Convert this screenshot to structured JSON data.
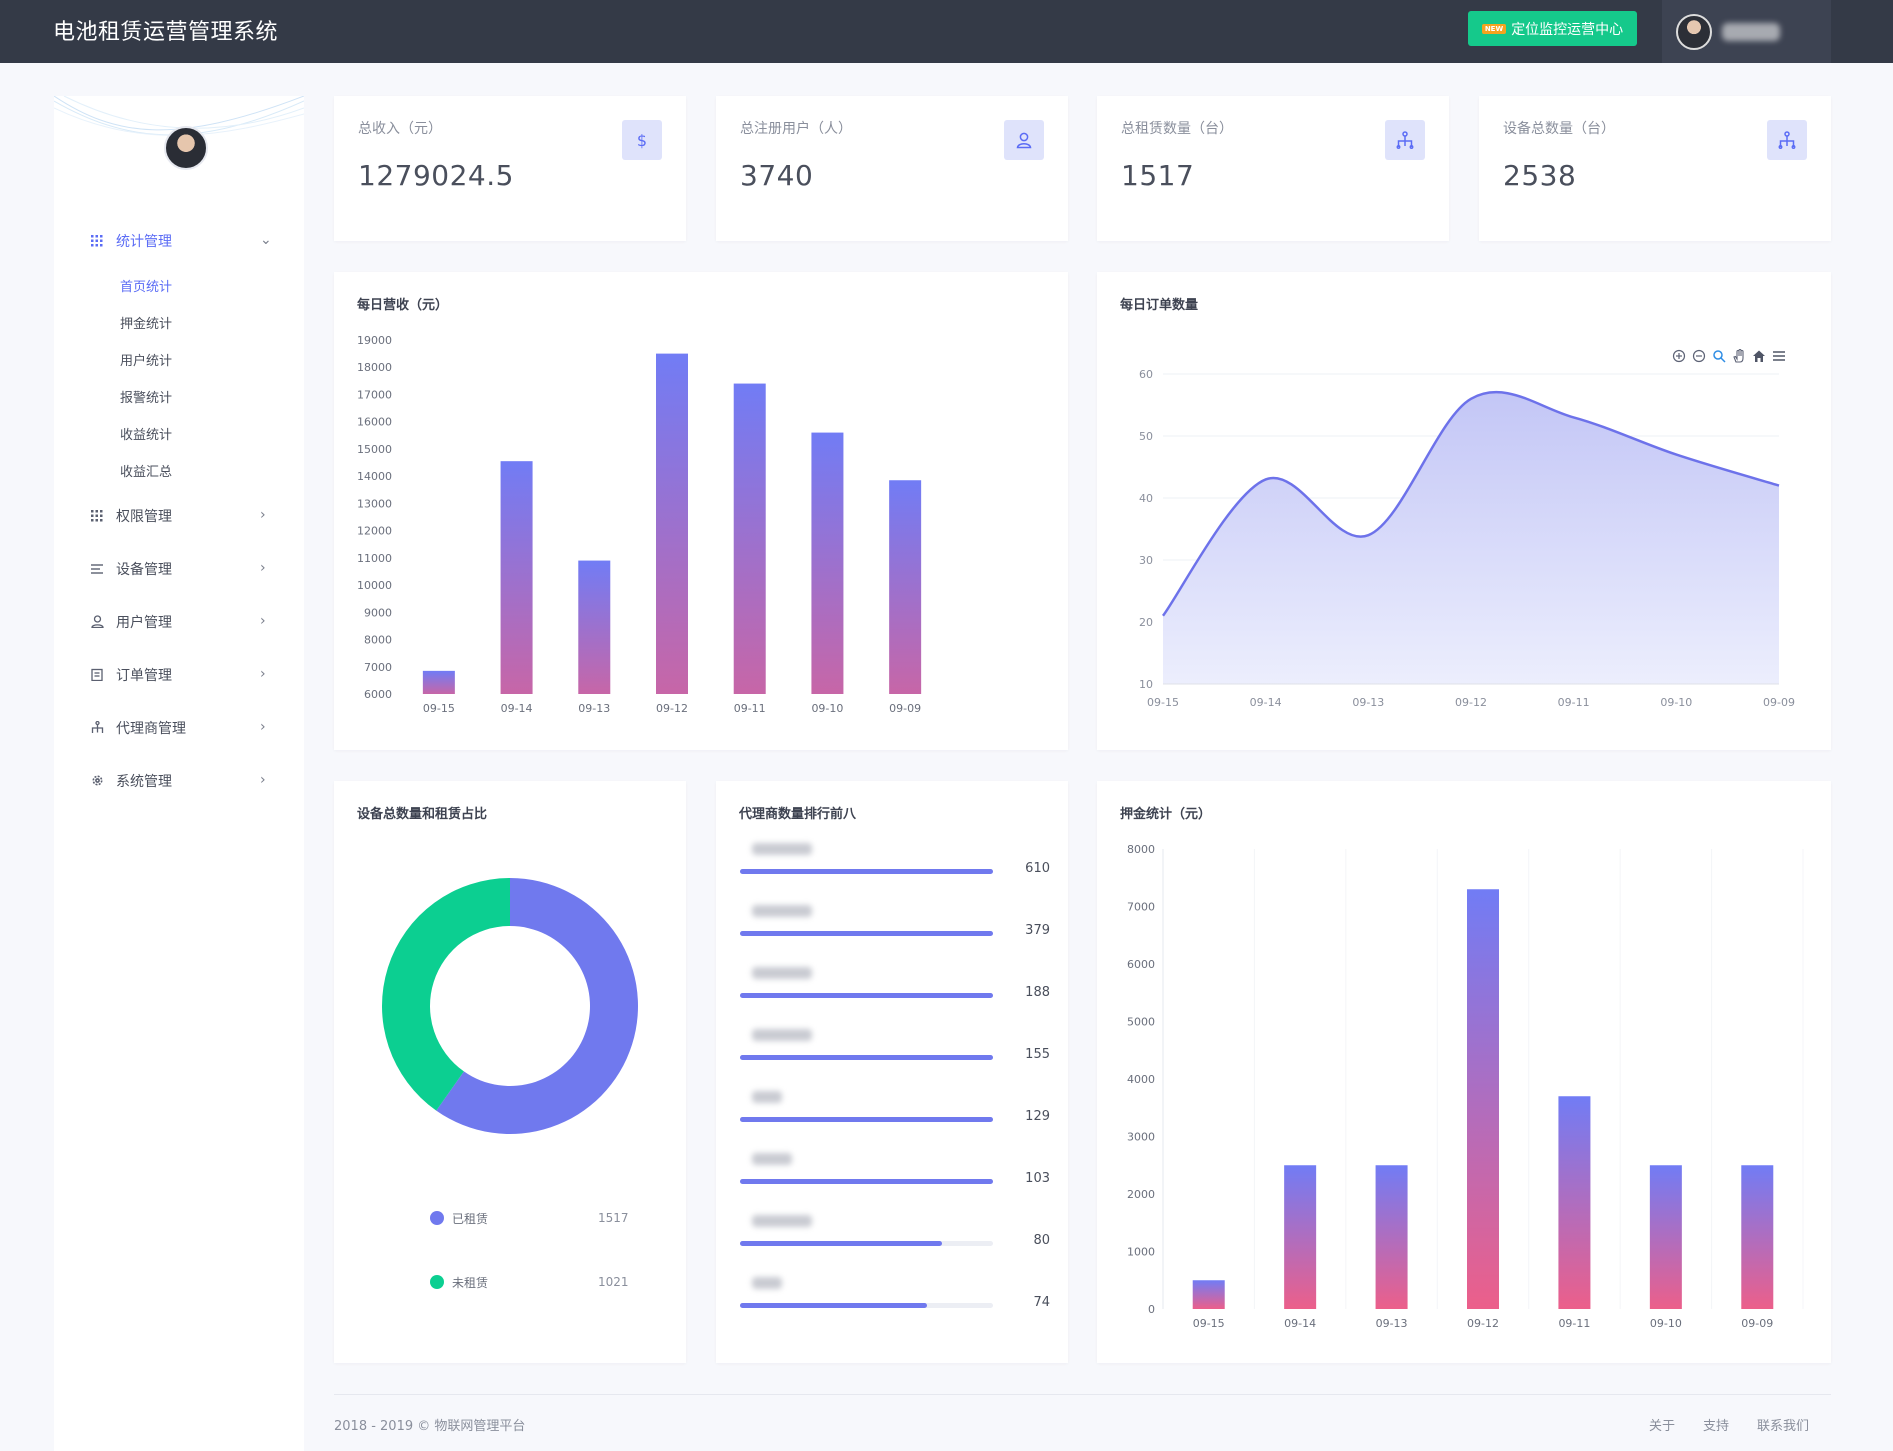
{
  "header": {
    "app_title": "电池租赁运营管理系统",
    "monitor_badge": "NEW",
    "monitor_label": "定位监控运营中心"
  },
  "sidebar": {
    "menu": [
      {
        "label": "统计管理",
        "icon": "grid-icon",
        "expanded": true,
        "children": [
          "首页统计",
          "押金统计",
          "用户统计",
          "报警统计",
          "收益统计",
          "收益汇总"
        ]
      },
      {
        "label": "权限管理",
        "icon": "grid-icon"
      },
      {
        "label": "设备管理",
        "icon": "list-icon"
      },
      {
        "label": "用户管理",
        "icon": "user-icon"
      },
      {
        "label": "订单管理",
        "icon": "clipboard-icon"
      },
      {
        "label": "代理商管理",
        "icon": "sitemap-icon"
      },
      {
        "label": "系统管理",
        "icon": "gear-icon"
      }
    ]
  },
  "stats": [
    {
      "label": "总收入（元）",
      "value": "1279024.5",
      "icon": "dollar-icon"
    },
    {
      "label": "总注册用户（人）",
      "value": "3740",
      "icon": "user-icon"
    },
    {
      "label": "总租赁数量（台）",
      "value": "1517",
      "icon": "sitemap-icon"
    },
    {
      "label": "设备总数量（台）",
      "value": "2538",
      "icon": "sitemap-icon"
    }
  ],
  "panels": {
    "revenue_title": "每日营收（元）",
    "orders_title": "每日订单数量",
    "ratio_title": "设备总数量和租赁占比",
    "agents_title": "代理商数量排行前八",
    "deposit_title": "押金统计（元）"
  },
  "ratio_legend": [
    {
      "label": "已租赁",
      "value": "1517",
      "color": "#7079ee"
    },
    {
      "label": "未租赁",
      "value": "1021",
      "color": "#0ccf91"
    }
  ],
  "agents": [
    {
      "value": "610",
      "fraction": 1.0
    },
    {
      "value": "379",
      "fraction": 1.0
    },
    {
      "value": "188",
      "fraction": 1.0
    },
    {
      "value": "155",
      "fraction": 1.0
    },
    {
      "value": "129",
      "fraction": 1.0
    },
    {
      "value": "103",
      "fraction": 1.0
    },
    {
      "value": "80",
      "fraction": 0.8
    },
    {
      "value": "74",
      "fraction": 0.74
    }
  ],
  "chart_data": [
    {
      "type": "bar",
      "categories": [
        "09-15",
        "09-14",
        "09-13",
        "09-12",
        "09-11",
        "09-10",
        "09-09"
      ],
      "values": [
        6850,
        14550,
        10900,
        18500,
        17400,
        15600,
        13850
      ],
      "ylim": [
        6000,
        19000
      ],
      "yticks": [
        19000,
        18000,
        17000,
        16000,
        15000,
        14000,
        13000,
        12000,
        11000,
        10000,
        9000,
        8000,
        7000,
        6000
      ],
      "colors": {
        "top": "#717cf5",
        "bottom": "#c766a7"
      }
    },
    {
      "type": "area",
      "categories": [
        "09-15",
        "09-14",
        "09-13",
        "09-12",
        "09-11",
        "09-10",
        "09-09"
      ],
      "values": [
        21,
        43,
        34,
        56,
        53,
        47,
        42
      ],
      "ylim": [
        10,
        60
      ],
      "yticks": [
        60,
        50,
        40,
        30,
        20,
        10
      ],
      "colors": {
        "line": "#6d72ea",
        "fill": "#c9ccf8"
      }
    },
    {
      "type": "pie",
      "categories": [
        "已租赁",
        "未租赁"
      ],
      "values": [
        1517,
        1021
      ],
      "colors": [
        "#7079ee",
        "#0ccf91"
      ]
    },
    {
      "type": "bar",
      "categories": [
        "09-15",
        "09-14",
        "09-13",
        "09-12",
        "09-11",
        "09-10",
        "09-09"
      ],
      "values": [
        500,
        2500,
        2500,
        7300,
        3700,
        2500,
        2500
      ],
      "ylim": [
        0,
        8000
      ],
      "yticks": [
        8000,
        7000,
        6000,
        5000,
        4000,
        3000,
        2000,
        1000,
        0
      ],
      "colors": {
        "top": "#717cf5",
        "bottom": "#ec5f8a"
      }
    }
  ],
  "footer": {
    "copyright": "2018 - 2019 © 物联网管理平台",
    "links": [
      "关于",
      "支持",
      "联系我们"
    ]
  }
}
